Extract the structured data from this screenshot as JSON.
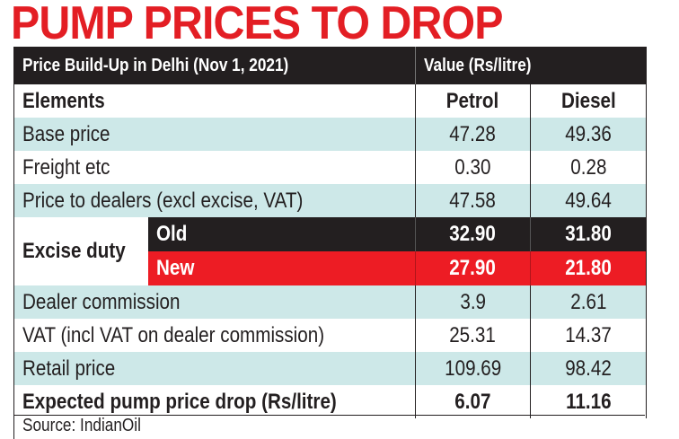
{
  "title": "PUMP PRICES TO DROP",
  "header": {
    "left": "Price Build-Up in Delhi (Nov 1, 2021)",
    "right": "Value (Rs/litre)"
  },
  "columns": {
    "elements": "Elements",
    "petrol": "Petrol",
    "diesel": "Diesel"
  },
  "rows": [
    {
      "label": "Base price",
      "petrol": "47.28",
      "diesel": "49.36"
    },
    {
      "label": "Freight etc",
      "petrol": "0.30",
      "diesel": "0.28"
    },
    {
      "label": "Price to dealers (excl excise, VAT)",
      "petrol": "47.58",
      "diesel": "49.64"
    }
  ],
  "excise": {
    "label": "Excise duty",
    "old": {
      "label": "Old",
      "petrol": "32.90",
      "diesel": "31.80"
    },
    "new": {
      "label": "New",
      "petrol": "27.90",
      "diesel": "21.80"
    }
  },
  "rows2": [
    {
      "label": "Dealer commission",
      "petrol": "3.9",
      "diesel": "2.61"
    },
    {
      "label": "VAT (incl VAT on dealer commission)",
      "petrol": "25.31",
      "diesel": "14.37"
    },
    {
      "label": "Retail price",
      "petrol": "109.69",
      "diesel": "98.42"
    },
    {
      "label": "Expected pump price drop (Rs/litre)",
      "petrol": "6.07",
      "diesel": "11.16"
    }
  ],
  "source": "Source: IndianOil",
  "colors": {
    "red": "#ed1c24",
    "teal": "#cde8e8",
    "black": "#231f20"
  }
}
